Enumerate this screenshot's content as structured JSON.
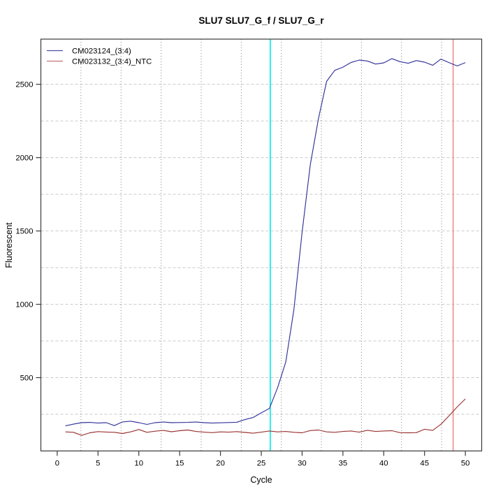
{
  "chart_data": {
    "type": "line",
    "title": "SLU7  SLU7_G_f / SLU7_G_r",
    "xlabel": "Cycle",
    "ylabel": "Fluorescent",
    "xlim": [
      -2,
      52
    ],
    "ylim": [
      0,
      2808
    ],
    "x_ticks": [
      0,
      5,
      10,
      15,
      20,
      25,
      30,
      35,
      40,
      45,
      50
    ],
    "y_ticks": [
      500,
      1000,
      1500,
      2000,
      2500
    ],
    "grid": {
      "h_dashed_values": [
        250,
        500,
        750,
        1000,
        1250,
        1500,
        1750,
        2000,
        2250,
        2500
      ],
      "h_color": "#c9c9c9",
      "v_dotted_cycles": [
        2.91,
        7.82,
        12.73,
        17.64,
        22.55,
        27.45,
        32.36,
        37.27,
        42.18,
        47.09
      ],
      "v_color": "#848484"
    },
    "vlines": [
      {
        "name": "threshold-line-cyan",
        "x": 26.1,
        "color": "#00e8e8"
      },
      {
        "name": "threshold-line-salmon",
        "x": 48.5,
        "color": "#f08a8a"
      }
    ],
    "x": [
      1,
      2,
      3,
      4,
      5,
      6,
      7,
      8,
      9,
      10,
      11,
      12,
      13,
      14,
      15,
      16,
      17,
      18,
      19,
      20,
      21,
      22,
      23,
      24,
      25,
      26,
      27,
      28,
      29,
      30,
      31,
      32,
      33,
      34,
      35,
      36,
      37,
      38,
      39,
      40,
      41,
      42,
      43,
      44,
      45,
      46,
      47,
      48,
      49,
      50
    ],
    "series": [
      {
        "name": "CM023124_(3:4)",
        "color": "#32329b",
        "legend_color": "#4c4ca8",
        "values": [
          171,
          183,
          193,
          195,
          190,
          193,
          173,
          198,
          203,
          193,
          181,
          193,
          197,
          193,
          194,
          195,
          197,
          193,
          190,
          192,
          194,
          196,
          214,
          228,
          260,
          290,
          432,
          607,
          964,
          1490,
          1950,
          2265,
          2520,
          2595,
          2617,
          2649,
          2665,
          2659,
          2638,
          2646,
          2675,
          2654,
          2643,
          2662,
          2651,
          2630,
          2672,
          2648,
          2625,
          2648
        ]
      },
      {
        "name": "CM023132_(3:4)_NTC",
        "color": "#9b3333",
        "legend_color": "#c87272",
        "values": [
          130,
          127,
          106,
          124,
          132,
          129,
          127,
          119,
          130,
          146,
          127,
          135,
          140,
          131,
          138,
          143,
          133,
          128,
          125,
          130,
          128,
          132,
          126,
          121,
          128,
          136,
          130,
          133,
          127,
          124,
          139,
          143,
          130,
          127,
          133,
          136,
          128,
          141,
          133,
          136,
          138,
          125,
          124,
          125,
          148,
          140,
          182,
          240,
          300,
          355
        ]
      }
    ],
    "legend_position": "top-left",
    "axis_color": "#3a3a3a"
  }
}
